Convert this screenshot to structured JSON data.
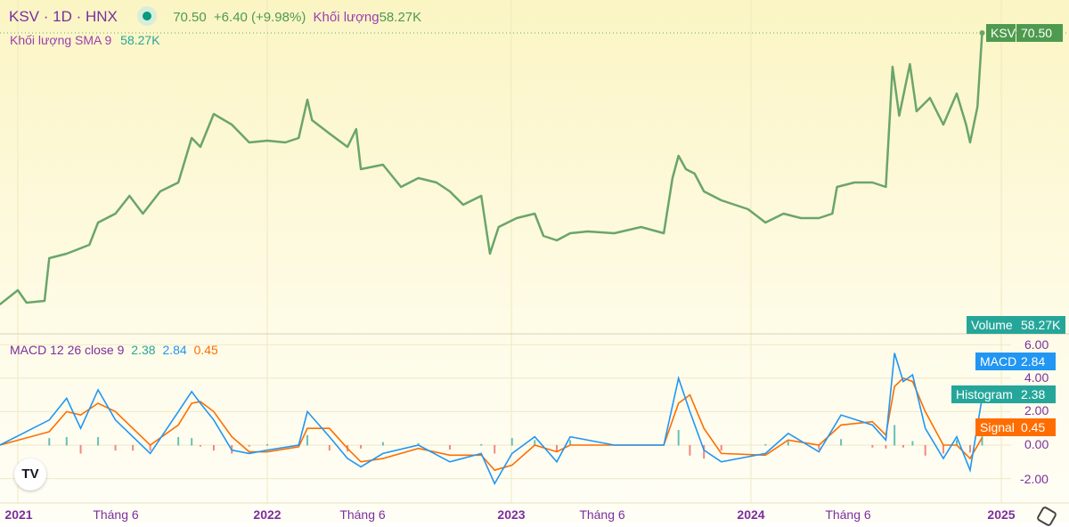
{
  "header": {
    "symbol": "KSV · 1D · HNX",
    "last": "70.50",
    "change": "+6.40 (+9.98%)",
    "volume_label": "Khối lượng",
    "volume_value": "58.27K"
  },
  "sma_legend": {
    "label": "Khối lượng SMA 9",
    "value": "58.27K"
  },
  "macd_legend": {
    "label": "MACD 12 26 close 9",
    "histogram": "2.38",
    "macd": "2.84",
    "signal": "0.45"
  },
  "price_tag": {
    "symbol": "KSV",
    "value": "70.50"
  },
  "volume_tag": {
    "label": "Volume",
    "value": "58.27K"
  },
  "macd_tags": [
    {
      "label": "MACD",
      "value": "2.84",
      "color": "#2196f3"
    },
    {
      "label": "Histogram",
      "value": "2.38",
      "color": "#26a69a"
    },
    {
      "label": "Signal",
      "value": "0.45",
      "color": "#ff6d00"
    }
  ],
  "macd_axis": [
    "6.00",
    "4.00",
    "2.00",
    "0.00",
    "-2.00"
  ],
  "time_axis": [
    {
      "label": "2021",
      "bold": true
    },
    {
      "label": "Tháng 6",
      "bold": false
    },
    {
      "label": "2022",
      "bold": true
    },
    {
      "label": "Tháng 6",
      "bold": false
    },
    {
      "label": "2023",
      "bold": true
    },
    {
      "label": "Tháng 6",
      "bold": false
    },
    {
      "label": "2024",
      "bold": true
    },
    {
      "label": "Tháng 6",
      "bold": false
    },
    {
      "label": "2025",
      "bold": true
    }
  ],
  "colors": {
    "price": "#6aa56a",
    "macd": "#2196f3",
    "signal": "#ff6d00",
    "hist_up": "#26a69a",
    "hist_down": "#ef5350",
    "text": "#7b2fa0"
  },
  "chart_data": [
    {
      "type": "line",
      "title": "KSV · 1D · HNX",
      "series": [
        {
          "name": "KSV",
          "dates": [
            "2020-12-05",
            "2021-01-01",
            "2021-01-14",
            "2021-02-10",
            "2021-02-17",
            "2021-03-15",
            "2021-04-18",
            "2021-05-01",
            "2021-05-27",
            "2021-06-17",
            "2021-07-07",
            "2021-08-02",
            "2021-08-29",
            "2021-09-18",
            "2021-10-01",
            "2021-10-21",
            "2021-11-17",
            "2021-12-13",
            "2022-01-09",
            "2022-02-05",
            "2022-02-25",
            "2022-03-10",
            "2022-03-17",
            "2022-04-12",
            "2022-05-09",
            "2022-05-22",
            "2022-05-29",
            "2022-07-01",
            "2022-07-28",
            "2022-08-23",
            "2022-09-19",
            "2022-10-09",
            "2022-10-29",
            "2022-11-25",
            "2022-12-08",
            "2022-12-21",
            "2023-01-17",
            "2023-02-13",
            "2023-02-26",
            "2023-03-18",
            "2023-04-07",
            "2023-05-03",
            "2023-06-12",
            "2023-07-22",
            "2023-08-25",
            "2023-09-07",
            "2023-09-16",
            "2023-09-27",
            "2023-10-10",
            "2023-10-24",
            "2023-11-19",
            "2023-12-29",
            "2024-01-24",
            "2024-02-20",
            "2024-03-17",
            "2024-04-13",
            "2024-05-03",
            "2024-05-10",
            "2024-06-05",
            "2024-07-02",
            "2024-07-22",
            "2024-07-28",
            "2024-08-01",
            "2024-08-11",
            "2024-08-27",
            "2024-09-06",
            "2024-09-26",
            "2024-10-16",
            "2024-11-05",
            "2024-11-19",
            "2024-11-25",
            "2024-12-06",
            "2024-12-13"
          ],
          "values": [
            9.5,
            12.7,
            9.9,
            10.3,
            19.9,
            20.9,
            22.9,
            27.9,
            29.9,
            33.9,
            29.9,
            34.9,
            36.9,
            46.9,
            44.9,
            52.3,
            49.9,
            45.9,
            46.3,
            45.9,
            46.9,
            55.5,
            50.9,
            47.9,
            44.9,
            48.9,
            39.9,
            40.9,
            35.9,
            37.9,
            36.9,
            34.9,
            31.9,
            33.9,
            20.9,
            26.9,
            28.9,
            29.9,
            24.9,
            23.9,
            25.5,
            25.9,
            25.5,
            26.9,
            25.5,
            37.9,
            42.9,
            39.9,
            38.9,
            34.9,
            32.9,
            30.9,
            27.9,
            29.9,
            28.9,
            28.9,
            29.9,
            35.9,
            36.9,
            36.9,
            35.9,
            51.9,
            62.9,
            51.9,
            63.5,
            52.9,
            55.9,
            49.9,
            56.9,
            49.9,
            45.9,
            53.9,
            70.5
          ]
        }
      ],
      "last_value": 70.5
    },
    {
      "type": "line",
      "title": "MACD 12 26 close 9",
      "ylim": [
        -3,
        6.5
      ],
      "yticks": [
        6,
        4,
        2,
        0,
        -2
      ],
      "dates": [
        "2020-12-05",
        "2021-02-17",
        "2021-03-15",
        "2021-04-05",
        "2021-05-01",
        "2021-05-27",
        "2021-06-22",
        "2021-07-18",
        "2021-08-29",
        "2021-09-18",
        "2021-10-01",
        "2021-10-21",
        "2021-11-17",
        "2021-12-13",
        "2022-01-09",
        "2022-02-25",
        "2022-03-10",
        "2022-04-12",
        "2022-05-09",
        "2022-05-29",
        "2022-07-01",
        "2022-08-23",
        "2022-10-09",
        "2022-11-25",
        "2022-12-15",
        "2023-01-10",
        "2023-02-13",
        "2023-03-18",
        "2023-04-07",
        "2023-06-12",
        "2023-08-25",
        "2023-09-16",
        "2023-10-03",
        "2023-10-24",
        "2023-11-19",
        "2024-01-24",
        "2024-02-27",
        "2024-04-13",
        "2024-05-16",
        "2024-07-02",
        "2024-07-22",
        "2024-08-04",
        "2024-08-17",
        "2024-08-31",
        "2024-09-19",
        "2024-10-16",
        "2024-11-05",
        "2024-11-25",
        "2024-12-13"
      ],
      "series": [
        {
          "name": "MACD",
          "values": [
            0,
            1.5,
            2.8,
            1.0,
            3.3,
            1.5,
            0.5,
            -0.5,
            2.0,
            3.2,
            2.5,
            1.5,
            -0.3,
            -0.5,
            -0.3,
            0,
            2.0,
            0.5,
            -0.8,
            -1.3,
            -0.5,
            0,
            -1.0,
            -0.5,
            -2.3,
            -0.5,
            0.5,
            -1.0,
            0.5,
            0,
            0,
            4.0,
            2.0,
            -0.3,
            -1.0,
            -0.5,
            0.7,
            -0.4,
            1.8,
            1.2,
            0.3,
            5.5,
            3.8,
            4.2,
            1.0,
            -0.8,
            0.5,
            -1.5,
            2.84
          ]
        },
        {
          "name": "Signal",
          "values": [
            0,
            0.8,
            2.0,
            1.8,
            2.5,
            2.0,
            1.0,
            0,
            1.2,
            2.5,
            2.6,
            2.0,
            0.5,
            -0.4,
            -0.4,
            -0.1,
            1.0,
            1.0,
            -0.2,
            -1.0,
            -0.8,
            -0.2,
            -0.6,
            -0.6,
            -1.5,
            -1.2,
            0,
            -0.4,
            0,
            0,
            0,
            2.5,
            3.0,
            1.0,
            -0.5,
            -0.6,
            0.3,
            0,
            1.2,
            1.4,
            0.6,
            3.5,
            4.0,
            3.8,
            2.0,
            0,
            0,
            -0.8,
            0.45
          ]
        }
      ]
    }
  ]
}
